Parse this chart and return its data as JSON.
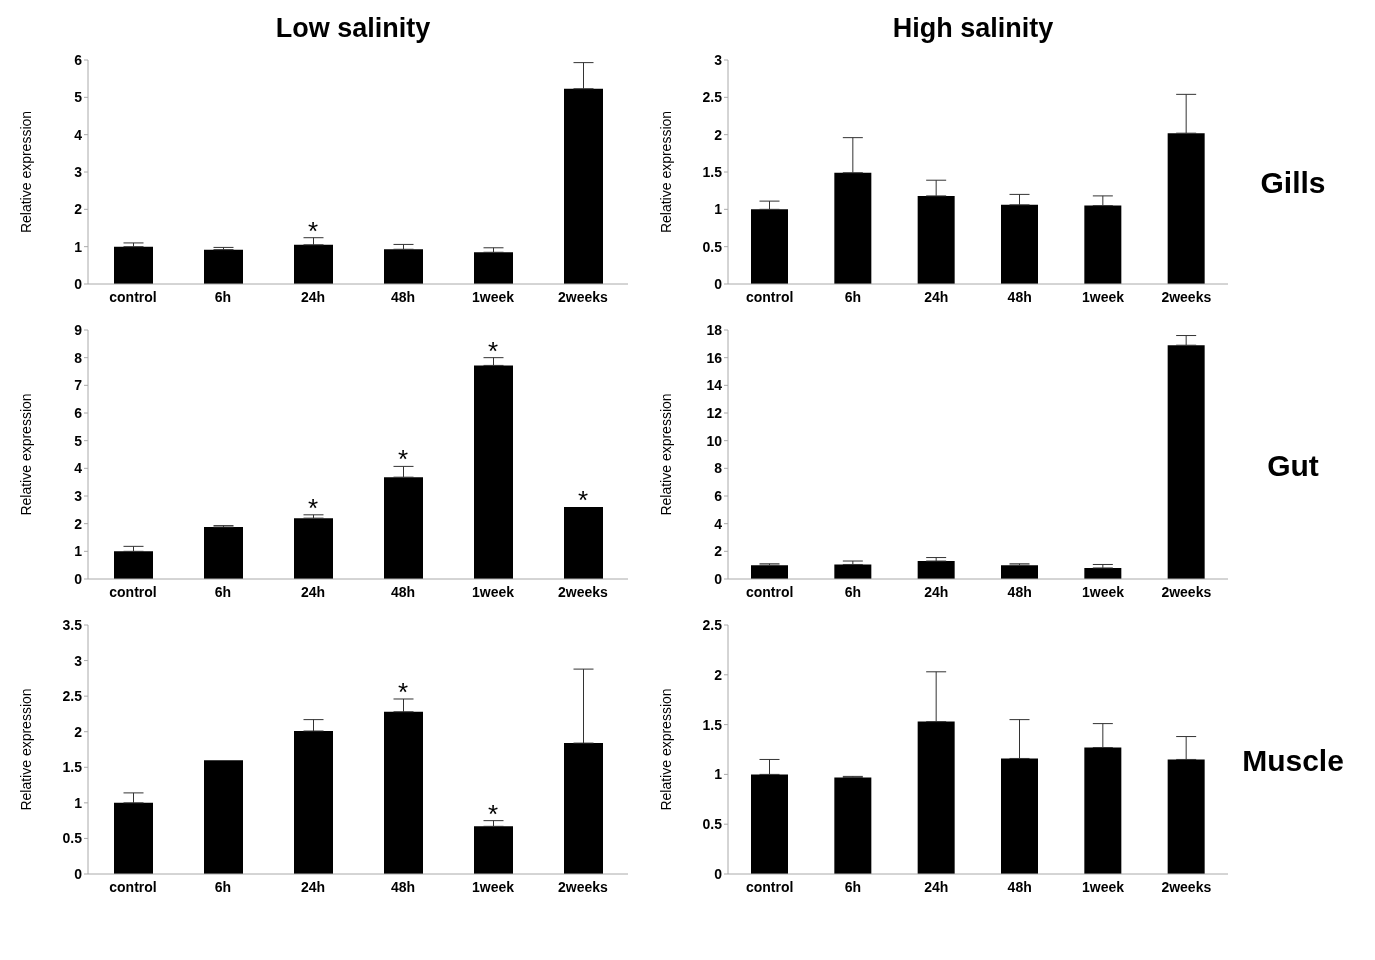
{
  "chart_data": [
    {
      "type": "bar",
      "title": "Low salinity",
      "categories": [
        "control",
        "6h",
        "24h",
        "48h",
        "1week",
        "2weeks"
      ],
      "values": [
        1.0,
        0.92,
        1.05,
        0.93,
        0.85,
        5.23
      ],
      "errors": [
        [
          1.0,
          1.1
        ],
        [
          0.92,
          0.98
        ],
        [
          1.05,
          1.24
        ],
        [
          0.93,
          1.06
        ],
        [
          0.85,
          0.97
        ],
        [
          5.23,
          5.93
        ]
      ],
      "color": "#000000",
      "ylabel": "Relative expression",
      "ylim": [
        0,
        6
      ],
      "yticks": [
        0,
        1,
        2,
        3,
        4,
        5,
        6
      ],
      "grid": false,
      "annotations": [
        {
          "text": "*",
          "x": "24h",
          "y": 1.05
        }
      ]
    },
    {
      "type": "bar",
      "title": "High salinity",
      "categories": [
        "control",
        "6h",
        "24h",
        "48h",
        "1week",
        "2weeks"
      ],
      "values": [
        1.0,
        1.49,
        1.18,
        1.06,
        1.05,
        2.02
      ],
      "errors": [
        [
          1.0,
          1.11
        ],
        [
          1.49,
          1.96
        ],
        [
          1.18,
          1.39
        ],
        [
          1.06,
          1.2
        ],
        [
          1.05,
          1.18
        ],
        [
          2.02,
          2.54
        ]
      ],
      "color": "#000000",
      "ylabel": "Relative expression",
      "ylim": [
        0,
        3
      ],
      "yticks": [
        0,
        0.5,
        1,
        1.5,
        2,
        2.5,
        3
      ],
      "grid": false,
      "annotations": [
        "Gills"
      ]
    },
    {
      "type": "bar",
      "categories": [
        "control",
        "6h",
        "24h",
        "48h",
        "1week",
        "2weeks"
      ],
      "values": [
        1.0,
        1.88,
        2.2,
        3.68,
        7.72,
        2.6
      ],
      "errors": [
        [
          1.0,
          1.18
        ],
        [
          1.88,
          1.93
        ],
        [
          2.2,
          2.32
        ],
        [
          3.68,
          4.07
        ],
        [
          7.72,
          8.0
        ],
        null
      ],
      "color": "#000000",
      "ylabel": "Relative expression",
      "ylim": [
        0,
        9
      ],
      "yticks": [
        0,
        1,
        2,
        3,
        4,
        5,
        6,
        7,
        8,
        9
      ],
      "grid": false,
      "annotations": [
        {
          "text": "*",
          "x": "24h",
          "y": 2.2
        },
        {
          "text": "*",
          "x": "48h",
          "y": 3.68
        },
        {
          "text": "*",
          "x": "1week",
          "y": 7.72
        },
        {
          "text": "*",
          "x": "2weeks",
          "y": 2.6
        }
      ]
    },
    {
      "type": "bar",
      "categories": [
        "control",
        "6h",
        "24h",
        "48h",
        "1week",
        "2weeks"
      ],
      "values": [
        1.0,
        1.05,
        1.3,
        1.0,
        0.8,
        16.9
      ],
      "errors": [
        [
          1.0,
          1.1
        ],
        [
          1.05,
          1.3
        ],
        [
          1.3,
          1.55
        ],
        [
          1.0,
          1.1
        ],
        [
          0.8,
          1.05
        ],
        [
          16.9,
          17.6
        ]
      ],
      "color": "#000000",
      "ylabel": "Relative expression",
      "ylim": [
        0,
        18
      ],
      "yticks": [
        0,
        2,
        4,
        6,
        8,
        10,
        12,
        14,
        16,
        18
      ],
      "grid": false,
      "annotations": [
        "Gut"
      ]
    },
    {
      "type": "bar",
      "categories": [
        "control",
        "6h",
        "24h",
        "48h",
        "1week",
        "2weeks"
      ],
      "values": [
        1.0,
        1.6,
        2.01,
        2.28,
        0.67,
        1.84
      ],
      "errors": [
        [
          1.0,
          1.14
        ],
        null,
        [
          2.01,
          2.17
        ],
        [
          2.28,
          2.46
        ],
        [
          0.67,
          0.75
        ],
        [
          1.84,
          2.88
        ]
      ],
      "color": "#000000",
      "ylabel": "Relative expression",
      "ylim": [
        0,
        3.5
      ],
      "yticks": [
        0,
        0.5,
        1,
        1.5,
        2,
        2.5,
        3,
        3.5
      ],
      "grid": false,
      "annotations": [
        {
          "text": "*",
          "x": "48h",
          "y": 2.28
        },
        {
          "text": "*",
          "x": "1week",
          "y": 0.67
        }
      ]
    },
    {
      "type": "bar",
      "categories": [
        "control",
        "6h",
        "24h",
        "48h",
        "1week",
        "2weeks"
      ],
      "values": [
        1.0,
        0.97,
        1.53,
        1.16,
        1.27,
        1.15
      ],
      "errors": [
        [
          1.0,
          1.15
        ],
        [
          0.97,
          0.98
        ],
        [
          1.53,
          2.03
        ],
        [
          1.16,
          1.55
        ],
        [
          1.27,
          1.51
        ],
        [
          1.15,
          1.38
        ]
      ],
      "color": "#000000",
      "ylabel": "Relative expression",
      "ylim": [
        0,
        2.5
      ],
      "yticks": [
        0,
        0.5,
        1,
        1.5,
        2,
        2.5
      ],
      "grid": false,
      "annotations": [
        "Muscle"
      ]
    }
  ]
}
